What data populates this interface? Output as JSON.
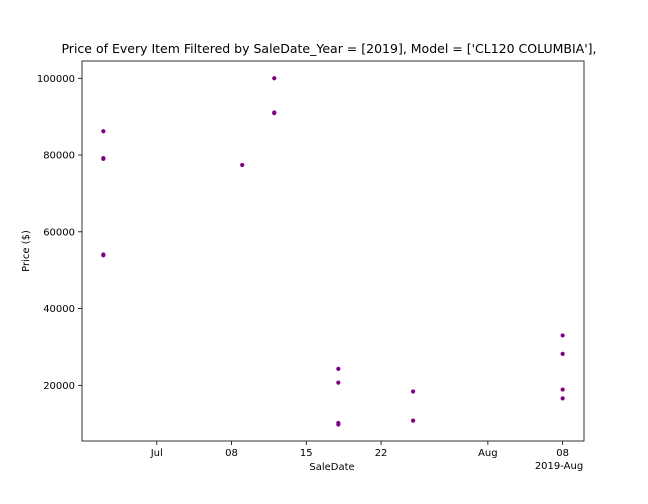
{
  "chart_data": {
    "type": "scatter",
    "title": "Price of Every Item Filtered by SaleDate_Year = [2019], Model = ['CL120 COLUMBIA'],",
    "xlabel": "SaleDate",
    "ylabel": "Price ($)",
    "x_range": [
      "2019-06-24",
      "2019-08-10"
    ],
    "ylim": [
      5500,
      104500
    ],
    "x_ticks": [
      {
        "date": "2019-07-01",
        "label": "Jul"
      },
      {
        "date": "2019-07-08",
        "label": "08"
      },
      {
        "date": "2019-07-15",
        "label": "15"
      },
      {
        "date": "2019-07-22",
        "label": "22"
      },
      {
        "date": "2019-08-01",
        "label": "Aug"
      },
      {
        "date": "2019-08-08",
        "label": "08"
      }
    ],
    "x_offset_label": "2019-Aug",
    "y_ticks": [
      20000,
      40000,
      60000,
      80000,
      100000
    ],
    "color": "#800080",
    "grid": false,
    "points": [
      {
        "x": "2019-06-26",
        "y": 86200
      },
      {
        "x": "2019-06-26",
        "y": 79200
      },
      {
        "x": "2019-06-26",
        "y": 79000
      },
      {
        "x": "2019-06-26",
        "y": 54100
      },
      {
        "x": "2019-06-26",
        "y": 53900
      },
      {
        "x": "2019-07-09",
        "y": 77400
      },
      {
        "x": "2019-07-12",
        "y": 100000
      },
      {
        "x": "2019-07-12",
        "y": 91100
      },
      {
        "x": "2019-07-12",
        "y": 90900
      },
      {
        "x": "2019-07-18",
        "y": 24300
      },
      {
        "x": "2019-07-18",
        "y": 20700
      },
      {
        "x": "2019-07-18",
        "y": 10200
      },
      {
        "x": "2019-07-18",
        "y": 9800
      },
      {
        "x": "2019-07-25",
        "y": 18400
      },
      {
        "x": "2019-07-25",
        "y": 10800
      },
      {
        "x": "2019-08-08",
        "y": 33000
      },
      {
        "x": "2019-08-08",
        "y": 28200
      },
      {
        "x": "2019-08-08",
        "y": 18900
      },
      {
        "x": "2019-08-08",
        "y": 16600
      }
    ]
  }
}
